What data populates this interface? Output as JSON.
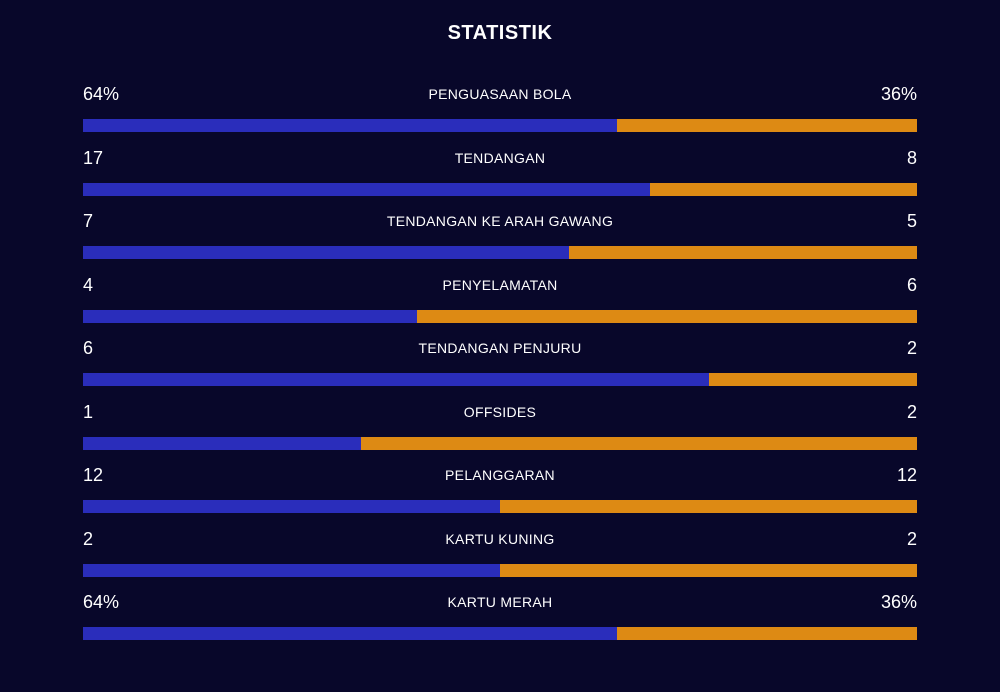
{
  "title": "STATISTIK",
  "colors": {
    "background": "#08072a",
    "home": "#2a2dbb",
    "away": "#dd8a14"
  },
  "stats": [
    {
      "label": "PENGUASAAN BOLA",
      "home": "64%",
      "away": "36%",
      "home_share": 0.64
    },
    {
      "label": "TENDANGAN",
      "home": "17",
      "away": "8",
      "home_share": 0.68
    },
    {
      "label": "TENDANGAN KE ARAH GAWANG",
      "home": "7",
      "away": "5",
      "home_share": 0.583
    },
    {
      "label": "PENYELAMATAN",
      "home": "4",
      "away": "6",
      "home_share": 0.4
    },
    {
      "label": "TENDANGAN PENJURU",
      "home": "6",
      "away": "2",
      "home_share": 0.75
    },
    {
      "label": "OFFSIDES",
      "home": "1",
      "away": "2",
      "home_share": 0.333
    },
    {
      "label": "PELANGGARAN",
      "home": "12",
      "away": "12",
      "home_share": 0.5
    },
    {
      "label": "KARTU KUNING",
      "home": "2",
      "away": "2",
      "home_share": 0.5
    },
    {
      "label": "KARTU MERAH",
      "home": "64%",
      "away": "36%",
      "home_share": 0.64
    }
  ]
}
